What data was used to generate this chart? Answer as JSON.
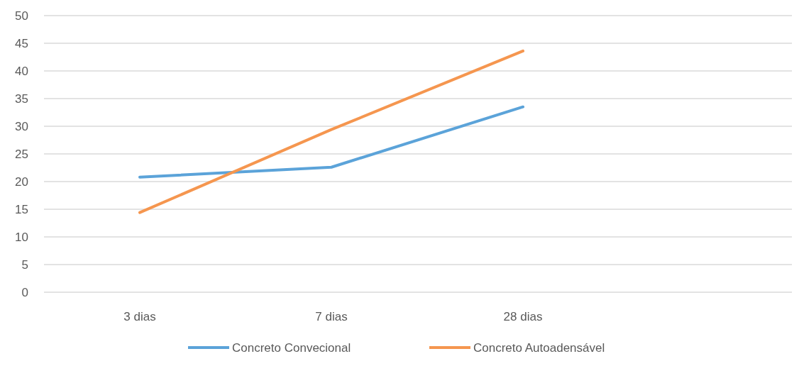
{
  "chart_data": {
    "type": "line",
    "categories": [
      "3 dias",
      "7 dias",
      "28 dias",
      null
    ],
    "series": [
      {
        "name": "Concreto Convecional",
        "color": "#5ba3d9",
        "values": [
          20.8,
          22.6,
          33.5,
          null
        ]
      },
      {
        "name": "Concreto Autoadensável",
        "color": "#f5964f",
        "values": [
          14.4,
          29.4,
          43.6,
          null
        ]
      }
    ],
    "ylim": [
      0,
      50
    ],
    "yticks": [
      0,
      5,
      10,
      15,
      20,
      25,
      30,
      35,
      40,
      45,
      50
    ],
    "grid": "y",
    "legend": "bottom",
    "marker": "none",
    "line_style": "solid"
  }
}
